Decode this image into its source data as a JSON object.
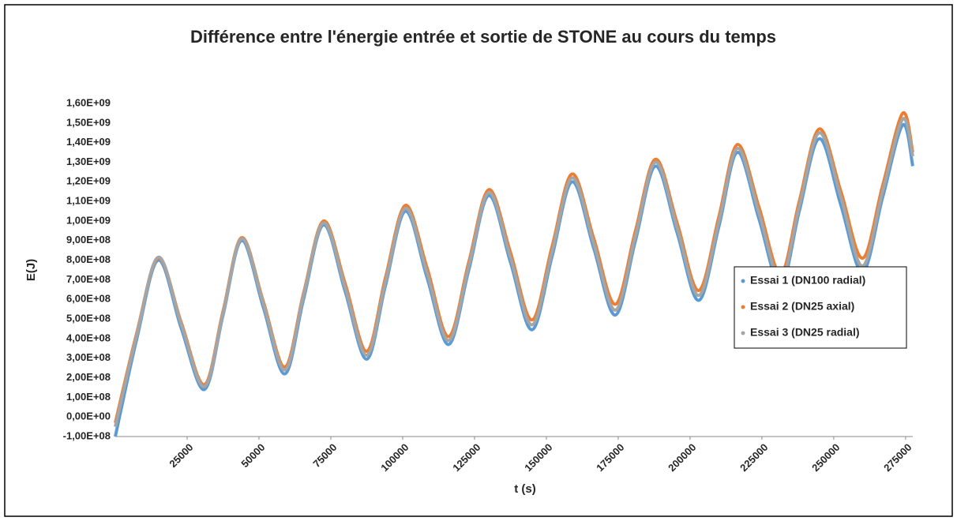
{
  "chart_data": {
    "type": "line",
    "title": "Différence entre l'énergie entrée et sortie de STONE au cours du temps",
    "xlabel": "t (s)",
    "ylabel": "E(J)",
    "x": [
      0,
      7500,
      15000,
      23000,
      31000,
      37500,
      44000,
      51500,
      59000,
      65500,
      72500,
      80000,
      87500,
      94000,
      101000,
      108500,
      116000,
      123000,
      130000,
      137500,
      145000,
      152000,
      159000,
      166500,
      174000,
      181000,
      188000,
      195500,
      203000,
      210000,
      216500,
      224000,
      231500,
      238000,
      245000,
      252500,
      260000,
      267000,
      274000,
      277500
    ],
    "series": [
      {
        "name": "Essai 1 (DN100 radial)",
        "color": "#5b9bd5",
        "values": [
          -100000000.0,
          400000000.0,
          800000000.0,
          450000000.0,
          140000000.0,
          520000000.0,
          900000000.0,
          560000000.0,
          220000000.0,
          600000000.0,
          980000000.0,
          640000000.0,
          295000000.0,
          670000000.0,
          1050000000.0,
          710000000.0,
          370000000.0,
          750000000.0,
          1130000000.0,
          790000000.0,
          445000000.0,
          820000000.0,
          1200000000.0,
          860000000.0,
          520000000.0,
          900000000.0,
          1280000000.0,
          940000000.0,
          595000000.0,
          970000000.0,
          1350000000.0,
          1010000000.0,
          670000000.0,
          1050000000.0,
          1420000000.0,
          1080000000.0,
          740000000.0,
          1120000000.0,
          1490000000.0,
          1280000000.0
        ]
      },
      {
        "name": "Essai 2 (DN25 axial)",
        "color": "#ed7d31",
        "values": [
          -30000000.0,
          430000000.0,
          810000000.0,
          480000000.0,
          165000000.0,
          540000000.0,
          915000000.0,
          590000000.0,
          255000000.0,
          630000000.0,
          1000000000.0,
          680000000.0,
          335000000.0,
          710000000.0,
          1080000000.0,
          760000000.0,
          410000000.0,
          790000000.0,
          1160000000.0,
          840000000.0,
          495000000.0,
          870000000.0,
          1240000000.0,
          910000000.0,
          575000000.0,
          950000000.0,
          1315000000.0,
          990000000.0,
          645000000.0,
          1020000000.0,
          1390000000.0,
          1070000000.0,
          730000000.0,
          1100000000.0,
          1470000000.0,
          1150000000.0,
          810000000.0,
          1180000000.0,
          1550000000.0,
          1350000000.0
        ]
      },
      {
        "name": "Essai 3 (DN25 radial)",
        "color": "#a5a5a5",
        "values": [
          -50000000.0,
          420000000.0,
          815000000.0,
          470000000.0,
          155000000.0,
          530000000.0,
          910000000.0,
          580000000.0,
          240000000.0,
          620000000.0,
          990000000.0,
          660000000.0,
          315000000.0,
          690000000.0,
          1065000000.0,
          735000000.0,
          390000000.0,
          770000000.0,
          1145000000.0,
          815000000.0,
          470000000.0,
          845000000.0,
          1220000000.0,
          885000000.0,
          545000000.0,
          925000000.0,
          1300000000.0,
          965000000.0,
          620000000.0,
          995000000.0,
          1370000000.0,
          1040000000.0,
          700000000.0,
          1075000000.0,
          1450000000.0,
          1120000000.0,
          770000000.0,
          1150000000.0,
          1520000000.0,
          1330000000.0
        ]
      }
    ],
    "xlim": [
      0,
      277500
    ],
    "xticks": [
      25000,
      50000,
      75000,
      100000,
      125000,
      150000,
      175000,
      200000,
      225000,
      250000,
      275000
    ],
    "ylim": [
      -100000000.0,
      1600000000.0
    ],
    "yticks": [
      {
        "value": -100000000.0,
        "label": "-1,00E+08"
      },
      {
        "value": 0,
        "label": "0,00E+00"
      },
      {
        "value": 100000000.0,
        "label": "1,00E+08"
      },
      {
        "value": 200000000.0,
        "label": "2,00E+08"
      },
      {
        "value": 300000000.0,
        "label": "3,00E+08"
      },
      {
        "value": 400000000.0,
        "label": "4,00E+08"
      },
      {
        "value": 500000000.0,
        "label": "5,00E+08"
      },
      {
        "value": 600000000.0,
        "label": "6,00E+08"
      },
      {
        "value": 700000000.0,
        "label": "7,00E+08"
      },
      {
        "value": 800000000.0,
        "label": "8,00E+08"
      },
      {
        "value": 900000000.0,
        "label": "9,00E+08"
      },
      {
        "value": 1000000000.0,
        "label": "1,00E+09"
      },
      {
        "value": 1100000000.0,
        "label": "1,10E+09"
      },
      {
        "value": 1200000000.0,
        "label": "1,20E+09"
      },
      {
        "value": 1300000000.0,
        "label": "1,30E+09"
      },
      {
        "value": 1400000000.0,
        "label": "1,40E+09"
      },
      {
        "value": 1500000000.0,
        "label": "1,50E+09"
      },
      {
        "value": 1600000000.0,
        "label": "1,60E+09"
      }
    ],
    "grid": false,
    "legend": "right"
  }
}
